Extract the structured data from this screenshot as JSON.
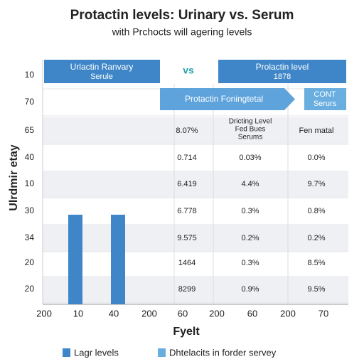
{
  "header": {
    "title": "Protactin levels: Urinary vs. Serum",
    "subtitle": "with Prchocts will agering levels"
  },
  "y_axis_title": "Ulrdmir etay",
  "x_axis_title": "Fyelt",
  "banners": {
    "left": [
      "Urlactin Ranvary",
      "Serule"
    ],
    "vs": "vs",
    "right": [
      "Prolactin level",
      "1878"
    ],
    "arrow": "Protactin Foningtetal",
    "box": [
      "CONT",
      "Serurs"
    ]
  },
  "row_labels": [
    "10",
    "70",
    "65",
    "40",
    "10",
    "30",
    "34",
    "20",
    "20"
  ],
  "table": {
    "rows": [
      [
        "8.07%",
        [
          "Dricting Level",
          "Fed Bues",
          "Serums"
        ],
        "Fen matal"
      ],
      [
        "0.714",
        "0.03%",
        "0.0%"
      ],
      [
        "6.419",
        "4.4%",
        "9.7%"
      ],
      [
        "6.778",
        "0.3%",
        "0.8%"
      ],
      [
        "9.575",
        "0.2%",
        "0.2%"
      ],
      [
        "1464",
        "0.3%",
        "8.5%"
      ],
      [
        "8299",
        "0.9%",
        "9.5%"
      ]
    ]
  },
  "x_labels": [
    "200",
    "10",
    "40",
    "200",
    "60",
    "200",
    "60",
    "200",
    "70"
  ],
  "legend": [
    {
      "name": "Lagr levels",
      "color": "#3f86c8"
    },
    {
      "name": "Dhtelacits in forder servey",
      "color": "#6aaee0"
    }
  ]
}
